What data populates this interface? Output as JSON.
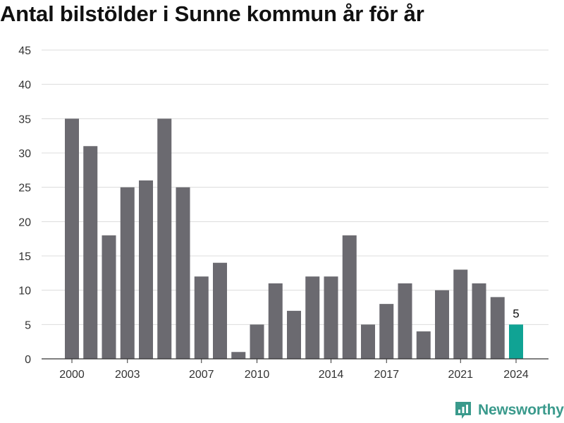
{
  "chart_data": {
    "type": "bar",
    "title": "Antal bilstölder i Sunne kommun år för år",
    "categories": [
      2000,
      2001,
      2002,
      2003,
      2004,
      2005,
      2006,
      2007,
      2008,
      2009,
      2010,
      2011,
      2012,
      2013,
      2014,
      2015,
      2016,
      2017,
      2018,
      2019,
      2020,
      2021,
      2022,
      2023,
      2024
    ],
    "values": [
      35,
      31,
      18,
      25,
      26,
      35,
      25,
      12,
      14,
      1,
      5,
      11,
      7,
      12,
      12,
      18,
      5,
      8,
      11,
      4,
      10,
      13,
      11,
      9,
      5
    ],
    "x_tick_labels": [
      "2000",
      "2003",
      "2007",
      "2010",
      "2014",
      "2017",
      "2021",
      "2024"
    ],
    "y_ticks": [
      0,
      5,
      10,
      15,
      20,
      25,
      30,
      35,
      40,
      45
    ],
    "ylim": [
      0,
      45
    ],
    "xlabel": "",
    "ylabel": "",
    "grid": true,
    "bar_color": "#6b6a70",
    "highlight_color": "#10a394",
    "highlight_index": 24,
    "data_labels": [
      {
        "index": 24,
        "text": "5"
      }
    ]
  },
  "brand": {
    "name": "Newsworthy",
    "color": "#3a9a8c",
    "icon": "newsworthy-logo-icon"
  }
}
